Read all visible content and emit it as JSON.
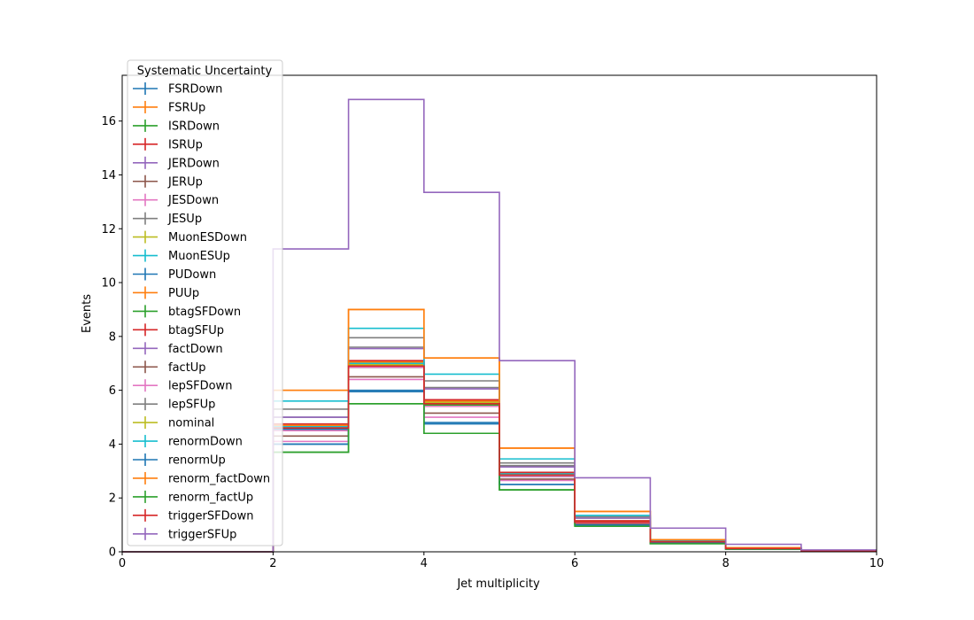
{
  "chart_data": {
    "type": "line",
    "style": "step-histogram",
    "xlabel": "Jet multiplicity",
    "ylabel": "Events",
    "xlim": [
      0,
      10
    ],
    "ylim": [
      0,
      17.7
    ],
    "xticks": [
      0,
      2,
      4,
      6,
      8,
      10
    ],
    "yticks": [
      0,
      2,
      4,
      6,
      8,
      10,
      12,
      14,
      16
    ],
    "bin_edges": [
      0,
      1,
      2,
      3,
      4,
      5,
      6,
      7,
      8,
      9,
      10
    ],
    "grid": false,
    "legend": {
      "title": "Systematic Uncertainty",
      "placement": "upper-left"
    },
    "series": [
      {
        "name": "FSRDown",
        "color": "#1f77b4",
        "values": [
          0,
          0,
          4.0,
          6.0,
          4.8,
          2.5,
          1.0,
          0.35,
          0.1,
          0.03
        ]
      },
      {
        "name": "FSRUp",
        "color": "#ff7f0e",
        "values": [
          0,
          0,
          6.0,
          9.0,
          7.2,
          3.85,
          1.5,
          0.45,
          0.15,
          0.04
        ]
      },
      {
        "name": "ISRDown",
        "color": "#2ca02c",
        "values": [
          0,
          0,
          3.7,
          5.5,
          4.4,
          2.3,
          0.95,
          0.3,
          0.1,
          0.03
        ]
      },
      {
        "name": "ISRUp",
        "color": "#d62728",
        "values": [
          0,
          0,
          4.7,
          7.05,
          5.6,
          2.9,
          1.15,
          0.4,
          0.12,
          0.03
        ]
      },
      {
        "name": "JERDown",
        "color": "#9467bd",
        "values": [
          0,
          0,
          4.6,
          6.95,
          5.55,
          2.85,
          1.1,
          0.38,
          0.12,
          0.03
        ]
      },
      {
        "name": "JERUp",
        "color": "#8c564b",
        "values": [
          0,
          0,
          4.65,
          7.0,
          5.5,
          2.88,
          1.12,
          0.38,
          0.12,
          0.03
        ]
      },
      {
        "name": "JESDown",
        "color": "#e377c2",
        "values": [
          0,
          0,
          4.1,
          6.4,
          5.0,
          2.65,
          1.05,
          0.35,
          0.11,
          0.03
        ]
      },
      {
        "name": "JESUp",
        "color": "#7f7f7f",
        "values": [
          0,
          0,
          5.0,
          7.6,
          6.1,
          3.2,
          1.25,
          0.4,
          0.13,
          0.04
        ]
      },
      {
        "name": "MuonESDown",
        "color": "#bcbd22",
        "values": [
          0,
          0,
          4.6,
          6.9,
          5.55,
          2.85,
          1.1,
          0.37,
          0.12,
          0.03
        ]
      },
      {
        "name": "MuonESUp",
        "color": "#17becf",
        "values": [
          0,
          0,
          4.65,
          7.0,
          5.6,
          2.9,
          1.12,
          0.38,
          0.12,
          0.03
        ]
      },
      {
        "name": "PUDown",
        "color": "#1f77b4",
        "values": [
          0,
          0,
          4.55,
          6.95,
          5.5,
          2.8,
          1.1,
          0.37,
          0.12,
          0.03
        ]
      },
      {
        "name": "PUUp",
        "color": "#ff7f0e",
        "values": [
          0,
          0,
          4.7,
          7.05,
          5.6,
          2.95,
          1.13,
          0.38,
          0.12,
          0.03
        ]
      },
      {
        "name": "btagSFDown",
        "color": "#2ca02c",
        "values": [
          0,
          0,
          4.5,
          6.85,
          5.45,
          2.8,
          1.08,
          0.36,
          0.11,
          0.03
        ]
      },
      {
        "name": "btagSFUp",
        "color": "#d62728",
        "values": [
          0,
          0,
          4.75,
          7.1,
          5.65,
          2.95,
          1.15,
          0.39,
          0.12,
          0.03
        ]
      },
      {
        "name": "factDown",
        "color": "#9467bd",
        "values": [
          0,
          0,
          5.0,
          7.55,
          6.05,
          3.15,
          1.25,
          0.4,
          0.13,
          0.04
        ]
      },
      {
        "name": "factUp",
        "color": "#8c564b",
        "values": [
          0,
          0,
          4.3,
          6.5,
          5.15,
          2.7,
          1.05,
          0.35,
          0.11,
          0.03
        ]
      },
      {
        "name": "lepSFDown",
        "color": "#e377c2",
        "values": [
          0,
          0,
          4.5,
          6.85,
          5.4,
          2.8,
          1.08,
          0.36,
          0.11,
          0.03
        ]
      },
      {
        "name": "lepSFUp",
        "color": "#7f7f7f",
        "values": [
          0,
          0,
          5.3,
          7.95,
          6.35,
          3.3,
          1.3,
          0.42,
          0.14,
          0.04
        ]
      },
      {
        "name": "nominal",
        "color": "#bcbd22",
        "values": [
          0,
          0,
          4.6,
          6.95,
          5.5,
          2.85,
          1.1,
          0.37,
          0.12,
          0.03
        ]
      },
      {
        "name": "renormDown",
        "color": "#17becf",
        "values": [
          0,
          0,
          5.6,
          8.3,
          6.6,
          3.45,
          1.35,
          0.44,
          0.14,
          0.04
        ]
      },
      {
        "name": "renormUp",
        "color": "#1f77b4",
        "values": [
          0,
          0,
          4.0,
          5.95,
          4.75,
          2.5,
          0.98,
          0.33,
          0.1,
          0.03
        ]
      },
      {
        "name": "renorm_factDown",
        "color": "#ff7f0e",
        "values": [
          0,
          0,
          6.0,
          9.0,
          7.2,
          3.85,
          1.5,
          0.45,
          0.15,
          0.04
        ]
      },
      {
        "name": "renorm_factUp",
        "color": "#2ca02c",
        "values": [
          0,
          0,
          3.7,
          5.5,
          4.4,
          2.3,
          0.95,
          0.3,
          0.1,
          0.03
        ]
      },
      {
        "name": "triggerSFDown",
        "color": "#d62728",
        "values": [
          0,
          0,
          4.6,
          6.9,
          5.5,
          2.85,
          1.1,
          0.37,
          0.12,
          0.03
        ]
      },
      {
        "name": "triggerSFUp",
        "color": "#9467bd",
        "values": [
          0,
          0,
          11.25,
          16.8,
          13.35,
          7.1,
          2.75,
          0.88,
          0.28,
          0.07
        ]
      }
    ]
  }
}
